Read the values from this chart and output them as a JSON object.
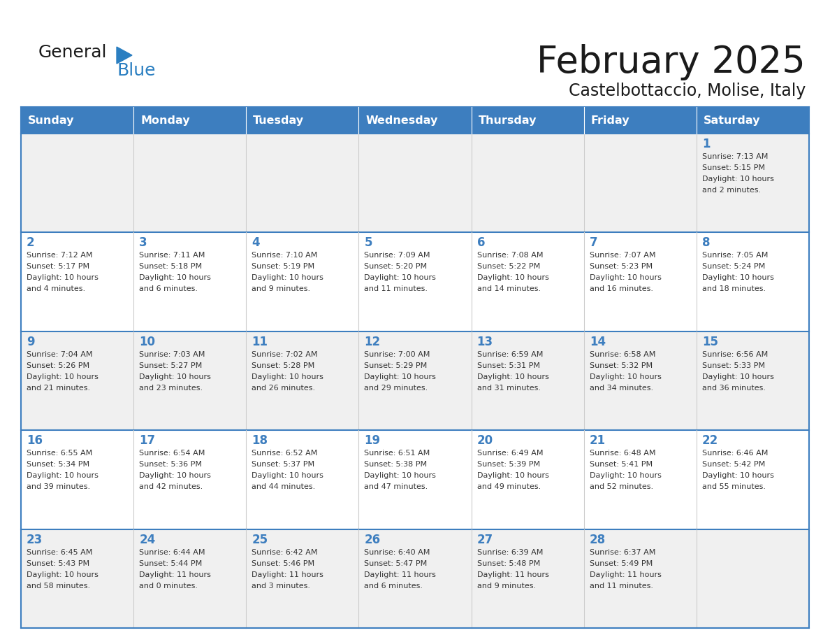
{
  "title": "February 2025",
  "subtitle": "Castelbottaccio, Molise, Italy",
  "header_bg": "#3d7ebf",
  "header_text_color": "#ffffff",
  "cell_bg_light": "#f0f0f0",
  "cell_bg_white": "#ffffff",
  "cell_border_top_color": "#3d7ebf",
  "cell_border_other_color": "#cccccc",
  "day_names": [
    "Sunday",
    "Monday",
    "Tuesday",
    "Wednesday",
    "Thursday",
    "Friday",
    "Saturday"
  ],
  "title_color": "#1a1a1a",
  "subtitle_color": "#1a1a1a",
  "day_number_color": "#3d7ebf",
  "cell_text_color": "#333333",
  "logo_general_color": "#1a1a1a",
  "logo_blue_color": "#2b7fc1",
  "calendar": [
    [
      null,
      null,
      null,
      null,
      null,
      null,
      {
        "day": 1,
        "sunrise": "7:13 AM",
        "sunset": "5:15 PM",
        "daylight": "10 hours\nand 2 minutes."
      }
    ],
    [
      {
        "day": 2,
        "sunrise": "7:12 AM",
        "sunset": "5:17 PM",
        "daylight": "10 hours\nand 4 minutes."
      },
      {
        "day": 3,
        "sunrise": "7:11 AM",
        "sunset": "5:18 PM",
        "daylight": "10 hours\nand 6 minutes."
      },
      {
        "day": 4,
        "sunrise": "7:10 AM",
        "sunset": "5:19 PM",
        "daylight": "10 hours\nand 9 minutes."
      },
      {
        "day": 5,
        "sunrise": "7:09 AM",
        "sunset": "5:20 PM",
        "daylight": "10 hours\nand 11 minutes."
      },
      {
        "day": 6,
        "sunrise": "7:08 AM",
        "sunset": "5:22 PM",
        "daylight": "10 hours\nand 14 minutes."
      },
      {
        "day": 7,
        "sunrise": "7:07 AM",
        "sunset": "5:23 PM",
        "daylight": "10 hours\nand 16 minutes."
      },
      {
        "day": 8,
        "sunrise": "7:05 AM",
        "sunset": "5:24 PM",
        "daylight": "10 hours\nand 18 minutes."
      }
    ],
    [
      {
        "day": 9,
        "sunrise": "7:04 AM",
        "sunset": "5:26 PM",
        "daylight": "10 hours\nand 21 minutes."
      },
      {
        "day": 10,
        "sunrise": "7:03 AM",
        "sunset": "5:27 PM",
        "daylight": "10 hours\nand 23 minutes."
      },
      {
        "day": 11,
        "sunrise": "7:02 AM",
        "sunset": "5:28 PM",
        "daylight": "10 hours\nand 26 minutes."
      },
      {
        "day": 12,
        "sunrise": "7:00 AM",
        "sunset": "5:29 PM",
        "daylight": "10 hours\nand 29 minutes."
      },
      {
        "day": 13,
        "sunrise": "6:59 AM",
        "sunset": "5:31 PM",
        "daylight": "10 hours\nand 31 minutes."
      },
      {
        "day": 14,
        "sunrise": "6:58 AM",
        "sunset": "5:32 PM",
        "daylight": "10 hours\nand 34 minutes."
      },
      {
        "day": 15,
        "sunrise": "6:56 AM",
        "sunset": "5:33 PM",
        "daylight": "10 hours\nand 36 minutes."
      }
    ],
    [
      {
        "day": 16,
        "sunrise": "6:55 AM",
        "sunset": "5:34 PM",
        "daylight": "10 hours\nand 39 minutes."
      },
      {
        "day": 17,
        "sunrise": "6:54 AM",
        "sunset": "5:36 PM",
        "daylight": "10 hours\nand 42 minutes."
      },
      {
        "day": 18,
        "sunrise": "6:52 AM",
        "sunset": "5:37 PM",
        "daylight": "10 hours\nand 44 minutes."
      },
      {
        "day": 19,
        "sunrise": "6:51 AM",
        "sunset": "5:38 PM",
        "daylight": "10 hours\nand 47 minutes."
      },
      {
        "day": 20,
        "sunrise": "6:49 AM",
        "sunset": "5:39 PM",
        "daylight": "10 hours\nand 49 minutes."
      },
      {
        "day": 21,
        "sunrise": "6:48 AM",
        "sunset": "5:41 PM",
        "daylight": "10 hours\nand 52 minutes."
      },
      {
        "day": 22,
        "sunrise": "6:46 AM",
        "sunset": "5:42 PM",
        "daylight": "10 hours\nand 55 minutes."
      }
    ],
    [
      {
        "day": 23,
        "sunrise": "6:45 AM",
        "sunset": "5:43 PM",
        "daylight": "10 hours\nand 58 minutes."
      },
      {
        "day": 24,
        "sunrise": "6:44 AM",
        "sunset": "5:44 PM",
        "daylight": "11 hours\nand 0 minutes."
      },
      {
        "day": 25,
        "sunrise": "6:42 AM",
        "sunset": "5:46 PM",
        "daylight": "11 hours\nand 3 minutes."
      },
      {
        "day": 26,
        "sunrise": "6:40 AM",
        "sunset": "5:47 PM",
        "daylight": "11 hours\nand 6 minutes."
      },
      {
        "day": 27,
        "sunrise": "6:39 AM",
        "sunset": "5:48 PM",
        "daylight": "11 hours\nand 9 minutes."
      },
      {
        "day": 28,
        "sunrise": "6:37 AM",
        "sunset": "5:49 PM",
        "daylight": "11 hours\nand 11 minutes."
      },
      null
    ]
  ]
}
